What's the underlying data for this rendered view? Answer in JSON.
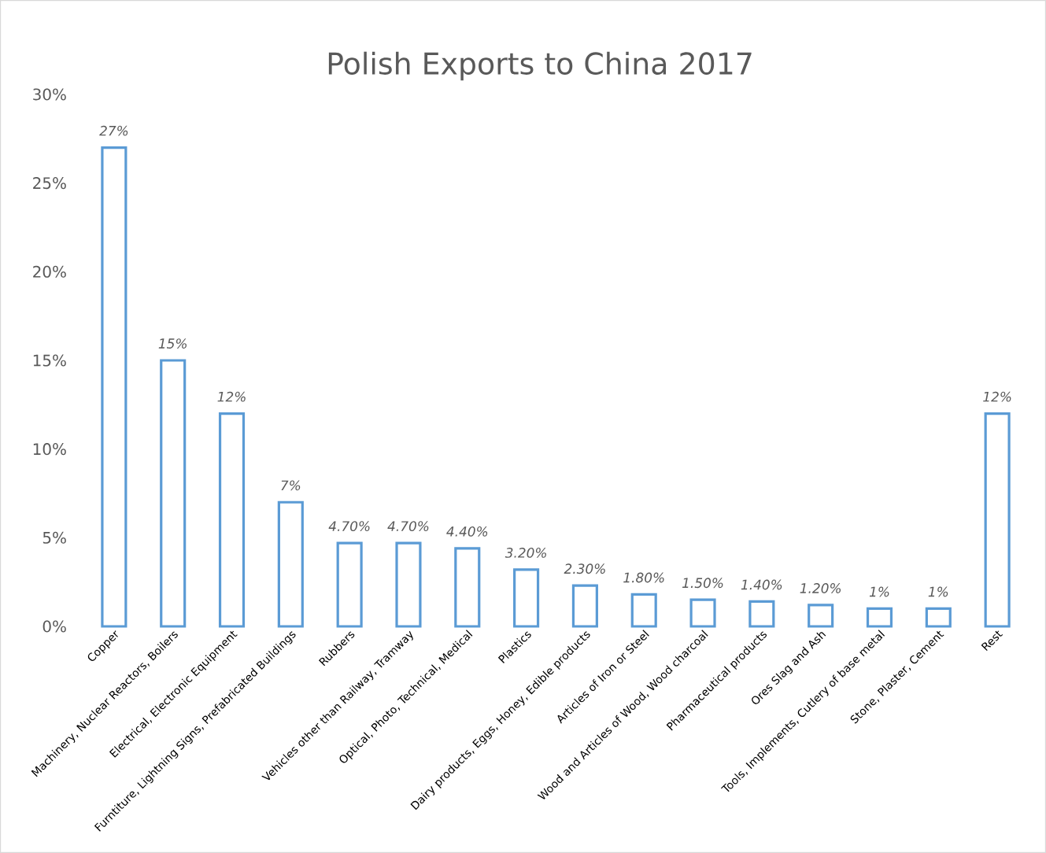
{
  "chart_data": {
    "type": "bar",
    "title": "Polish Exports to China 2017",
    "categories": [
      "Copper",
      "Machinery, Nuclear Reactors, Boilers",
      "Electrical, Electronic Equipment",
      "Furntiture, Lightning Signs, Prefabricated Buildings",
      "Rubbers",
      "Vehicles other than Railway, Tramway",
      "Optical, Photo, Technical, Medical",
      "Plastics",
      "Dairy products, Eggs, Honey, Edible products",
      "Articles of Iron or Steel",
      "Wood and Articles of Wood, Wood charcoal",
      "Pharmaceutical products",
      "Ores Slag and Ash",
      "Tools, Implements, Cutlery of base metal",
      "Stone, Plaster, Cement",
      "Rest"
    ],
    "values": [
      27,
      15,
      12,
      7,
      4.7,
      4.7,
      4.4,
      3.2,
      2.3,
      1.8,
      1.5,
      1.4,
      1.2,
      1,
      1,
      12
    ],
    "value_labels": [
      "27%",
      "15%",
      "12%",
      "7%",
      "4.70%",
      "4.70%",
      "4.40%",
      "3.20%",
      "2.30%",
      "1.80%",
      "1.50%",
      "1.40%",
      "1.20%",
      "1%",
      "1%",
      "12%"
    ],
    "color": "#5b9bd5",
    "ylim": [
      0,
      30
    ],
    "yticks": [
      {
        "value": 0,
        "label": "0%"
      },
      {
        "value": 5,
        "label": "5%"
      },
      {
        "value": 10,
        "label": "10%"
      },
      {
        "value": 15,
        "label": "15%"
      },
      {
        "value": 20,
        "label": "20%"
      },
      {
        "value": 25,
        "label": "25%"
      },
      {
        "value": 30,
        "label": "30%"
      }
    ],
    "grid": false
  }
}
